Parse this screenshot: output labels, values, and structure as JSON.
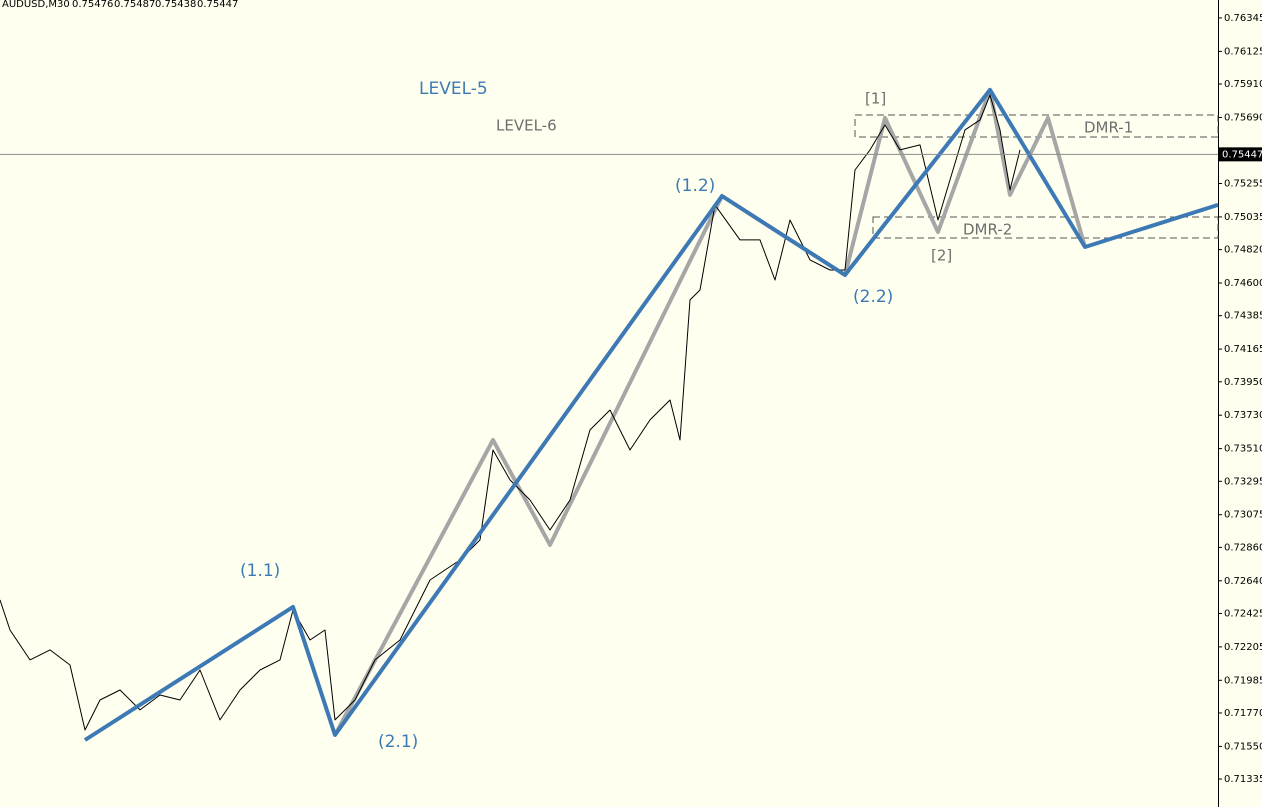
{
  "chart_data": {
    "type": "line",
    "symbol": "AUDUSD,M30",
    "ohlc": [
      0.75476,
      0.75487,
      0.75438,
      0.75447
    ],
    "xlim": [
      0,
      1218
    ],
    "ylim": [
      0.71151,
      0.76463
    ],
    "yticks": [
      0.76345,
      0.76125,
      {
        "value": 0.7591,
        "label": "0.75910"
      },
      {
        "value": 0.7569,
        "label": "0.75690"
      },
      0.75255,
      0.75035,
      {
        "value": 0.7482,
        "label": "0.74820"
      },
      {
        "value": 0.746,
        "label": "0.74600"
      },
      0.74385,
      0.74165,
      {
        "value": 0.7395,
        "label": "0.73950"
      },
      {
        "value": 0.7373,
        "label": "0.73730"
      },
      {
        "value": 0.7351,
        "label": "0.73510"
      },
      0.73295,
      0.73075,
      {
        "value": 0.7286,
        "label": "0.72860"
      },
      {
        "value": 0.7264,
        "label": "0.72640"
      },
      0.72425,
      0.72205,
      0.71985,
      {
        "value": 0.7177,
        "label": "0.71770"
      },
      {
        "value": 0.7155,
        "label": "0.71550"
      },
      0.71335
    ],
    "current_price": 0.75447,
    "series": [
      {
        "color": "#000000",
        "x": [
          0,
          10,
          30,
          50,
          70,
          85,
          100,
          120,
          140,
          160,
          180,
          200,
          220,
          240,
          260,
          280,
          293,
          310,
          325,
          335,
          355,
          375,
          400,
          430,
          460,
          480,
          493,
          510,
          530,
          550,
          570,
          590,
          610,
          630,
          650,
          670,
          680,
          690,
          700,
          715,
          740,
          760,
          775,
          790,
          810,
          830,
          845,
          855,
          870,
          885,
          900,
          920,
          938,
          950,
          965,
          980,
          990,
          1000,
          1010,
          1020
        ],
        "values": [
          0.72514,
          0.72316,
          0.72119,
          0.72185,
          0.72086,
          0.71658,
          0.71855,
          0.71921,
          0.7179,
          0.71888,
          0.71855,
          0.72053,
          0.71724,
          0.71921,
          0.72053,
          0.72119,
          0.72448,
          0.7225,
          0.72316,
          0.71724,
          0.71855,
          0.72119,
          0.7225,
          0.72645,
          0.72777,
          0.72909,
          0.73501,
          0.73304,
          0.73172,
          0.72974,
          0.73172,
          0.73633,
          0.73764,
          0.73501,
          0.73699,
          0.7383,
          0.73567,
          0.74489,
          0.74554,
          0.75114,
          0.74884,
          0.74884,
          0.7462,
          0.75015,
          0.74752,
          0.74686,
          0.74686,
          0.75344,
          0.75476,
          0.75641,
          0.75476,
          0.75509,
          0.75015,
          0.75279,
          0.75608,
          0.75674,
          0.75838,
          0.75608,
          0.75213,
          0.75476
        ]
      },
      {
        "name": "LEVEL-5",
        "color": "#3d7ab5",
        "x": [
          85,
          293,
          335,
          722,
          845,
          990,
          1085,
          1218
        ],
        "values": [
          0.71592,
          0.72468,
          0.71625,
          0.75173,
          0.74653,
          0.75871,
          0.74837,
          0.75114
        ]
      },
      {
        "name": "LEVEL-6",
        "color": "#a6a6a6",
        "x": [
          335,
          493,
          550,
          722,
          845,
          885,
          938,
          990,
          1010,
          1048,
          1085
        ],
        "values": [
          0.71625,
          0.73567,
          0.72876,
          0.75173,
          0.74653,
          0.75687,
          0.74936,
          0.75871,
          0.7518,
          0.75687,
          0.74837
        ]
      }
    ],
    "annotations": [
      "(1.1)",
      "(2.1)",
      "(1.2)",
      "(2.2)",
      "[1]",
      "[2]",
      "DMR-1",
      "DMR-2"
    ]
  }
}
